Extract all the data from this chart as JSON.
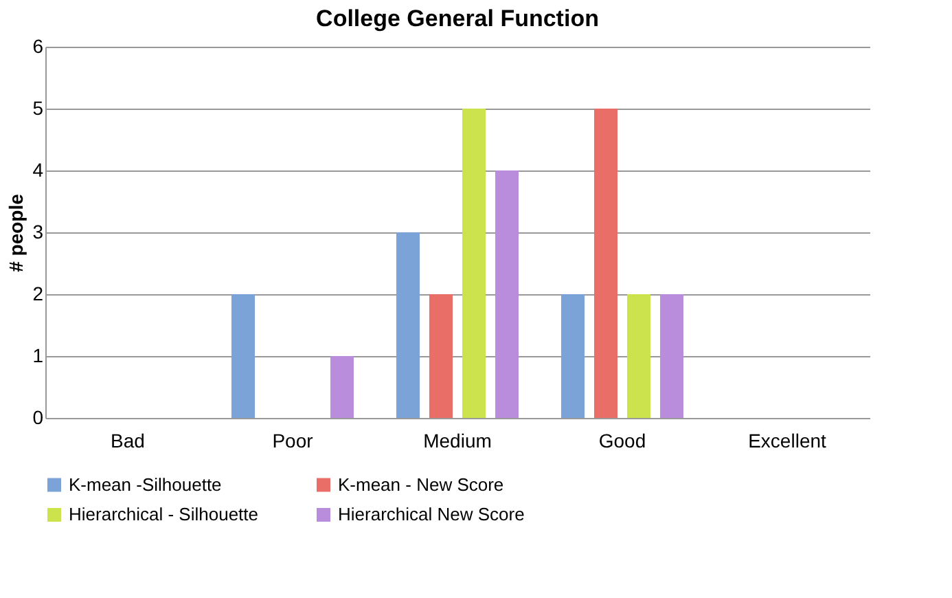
{
  "chart_data": {
    "type": "bar",
    "title": "College General Function",
    "ylabel": "# people",
    "categories": [
      "Bad",
      "Poor",
      "Medium",
      "Good",
      "Excellent"
    ],
    "series": [
      {
        "name": "K-mean -Silhouette",
        "color": "#7ba3d8",
        "values": [
          0,
          2,
          3,
          2,
          0
        ]
      },
      {
        "name": "K-mean - New Score",
        "color": "#ea6e68",
        "values": [
          0,
          0,
          2,
          5,
          0
        ]
      },
      {
        "name": "Hierarchical - Silhouette",
        "color": "#cde34e",
        "values": [
          0,
          0,
          5,
          2,
          0
        ]
      },
      {
        "name": "Hierarchical New Score",
        "color": "#b98ddc",
        "values": [
          0,
          1,
          4,
          2,
          0
        ]
      }
    ],
    "ylim": [
      0,
      6
    ],
    "yticks": [
      0,
      1,
      2,
      3,
      4,
      5,
      6
    ],
    "grid": "y",
    "legend": "bottom"
  }
}
